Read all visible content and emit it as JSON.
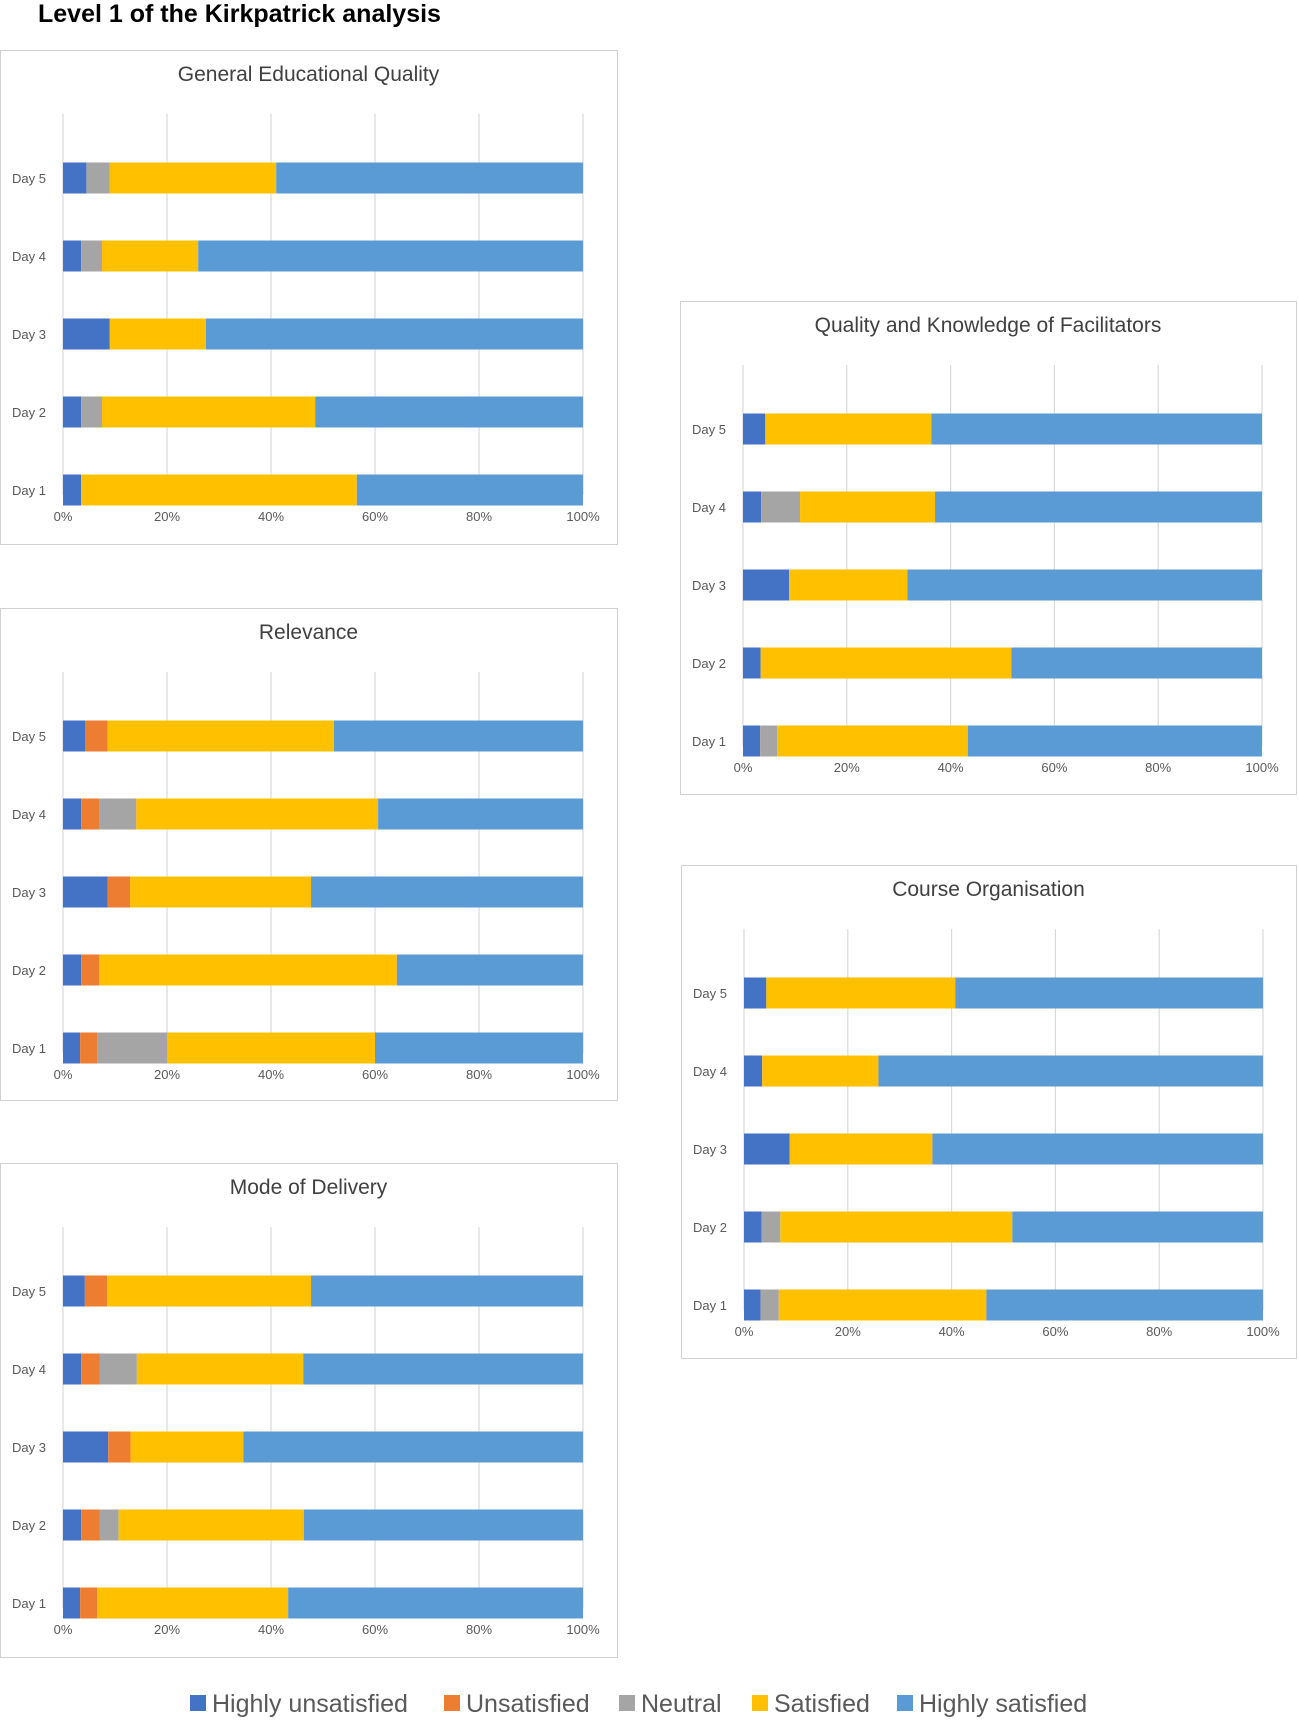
{
  "page_title": "Level 1 of the Kirkpatrick analysis",
  "colors": {
    "highly_unsatisfied": "#4472C4",
    "unsatisfied": "#ED7D31",
    "neutral": "#A5A5A5",
    "satisfied": "#FFC000",
    "highly_satisfied": "#5B9BD5",
    "grid": "#d9d9d9",
    "tick_text": "#595959",
    "title_text": "#404040"
  },
  "legend": [
    {
      "label": "Highly unsatisfied",
      "color": "#4472C4"
    },
    {
      "label": "Unsatisfied",
      "color": "#ED7D31"
    },
    {
      "label": "Neutral",
      "color": "#A5A5A5"
    },
    {
      "label": "Satisfied",
      "color": "#FFC000"
    },
    {
      "label": "Highly satisfied",
      "color": "#5B9BD5"
    }
  ],
  "chart_data": [
    {
      "id": "general-educational-quality",
      "type": "bar",
      "orientation": "horizontal-stacked-100",
      "title": "General Educational Quality",
      "categories": [
        "Day 5",
        "Day 4",
        "Day 3",
        "Day 2",
        "Day 1"
      ],
      "xticks": [
        "0%",
        "20%",
        "40%",
        "60%",
        "80%",
        "100%"
      ],
      "xlim": [
        0,
        100
      ],
      "series": [
        {
          "name": "Highly unsatisfied",
          "values": [
            4.5,
            3.5,
            9,
            3.5,
            3.5
          ]
        },
        {
          "name": "Unsatisfied",
          "values": [
            0,
            0,
            0,
            0,
            0
          ]
        },
        {
          "name": "Neutral",
          "values": [
            4.5,
            4,
            0,
            4,
            0
          ]
        },
        {
          "name": "Satisfied",
          "values": [
            32,
            18.5,
            18.5,
            41,
            53
          ]
        },
        {
          "name": "Highly satisfied",
          "values": [
            59,
            74,
            72.5,
            51.5,
            43.5
          ]
        }
      ]
    },
    {
      "id": "relevance",
      "type": "bar",
      "orientation": "horizontal-stacked-100",
      "title": "Relevance",
      "categories": [
        "Day 5",
        "Day 4",
        "Day 3",
        "Day 2",
        "Day 1"
      ],
      "xticks": [
        "0%",
        "20%",
        "40%",
        "60%",
        "80%",
        "100%"
      ],
      "xlim": [
        0,
        100
      ],
      "series": [
        {
          "name": "Highly unsatisfied",
          "values": [
            4.3,
            3.5,
            8.6,
            3.5,
            3.3
          ]
        },
        {
          "name": "Unsatisfied",
          "values": [
            4.3,
            3.5,
            4.3,
            3.5,
            3.3
          ]
        },
        {
          "name": "Neutral",
          "values": [
            0,
            7.1,
            0,
            0,
            13.4
          ]
        },
        {
          "name": "Satisfied",
          "values": [
            43.5,
            46.5,
            34.8,
            57.2,
            40
          ]
        },
        {
          "name": "Highly satisfied",
          "values": [
            47.9,
            39.4,
            52.3,
            35.8,
            40
          ]
        }
      ]
    },
    {
      "id": "mode-of-delivery",
      "type": "bar",
      "orientation": "horizontal-stacked-100",
      "title": "Mode of Delivery",
      "categories": [
        "Day 5",
        "Day 4",
        "Day 3",
        "Day 2",
        "Day 1"
      ],
      "xticks": [
        "0%",
        "20%",
        "40%",
        "60%",
        "80%",
        "100%"
      ],
      "xlim": [
        0,
        100
      ],
      "series": [
        {
          "name": "Highly unsatisfied",
          "values": [
            4.2,
            3.5,
            8.7,
            3.5,
            3.3
          ]
        },
        {
          "name": "Unsatisfied",
          "values": [
            4.3,
            3.6,
            4.3,
            3.6,
            3.3
          ]
        },
        {
          "name": "Neutral",
          "values": [
            0,
            7.1,
            0,
            3.6,
            0
          ]
        },
        {
          "name": "Satisfied",
          "values": [
            39.2,
            32,
            21.7,
            35.6,
            36.7
          ]
        },
        {
          "name": "Highly satisfied",
          "values": [
            52.3,
            53.8,
            65.3,
            53.7,
            56.7
          ]
        }
      ]
    },
    {
      "id": "quality-and-knowledge-of-facilitators",
      "type": "bar",
      "orientation": "horizontal-stacked-100",
      "title": "Quality and Knowledge of Facilitators",
      "categories": [
        "Day 5",
        "Day 4",
        "Day 3",
        "Day 2",
        "Day 1"
      ],
      "xticks": [
        "0%",
        "20%",
        "40%",
        "60%",
        "80%",
        "100%"
      ],
      "xlim": [
        0,
        100
      ],
      "series": [
        {
          "name": "Highly unsatisfied",
          "values": [
            4.3,
            3.5,
            8.9,
            3.4,
            3.3
          ]
        },
        {
          "name": "Unsatisfied",
          "values": [
            0,
            0,
            0,
            0,
            0
          ]
        },
        {
          "name": "Neutral",
          "values": [
            0,
            7.5,
            0,
            0,
            3.3
          ]
        },
        {
          "name": "Satisfied",
          "values": [
            32,
            26,
            22.8,
            48.3,
            36.7
          ]
        },
        {
          "name": "Highly satisfied",
          "values": [
            63.7,
            63,
            68.3,
            48.3,
            56.7
          ]
        }
      ]
    },
    {
      "id": "course-organisation",
      "type": "bar",
      "orientation": "horizontal-stacked-100",
      "title": "Course Organisation",
      "categories": [
        "Day 5",
        "Day 4",
        "Day 3",
        "Day 2",
        "Day 1"
      ],
      "xticks": [
        "0%",
        "20%",
        "40%",
        "60%",
        "80%",
        "100%"
      ],
      "xlim": [
        0,
        100
      ],
      "series": [
        {
          "name": "Highly unsatisfied",
          "values": [
            4.3,
            3.5,
            8.8,
            3.4,
            3.2
          ]
        },
        {
          "name": "Unsatisfied",
          "values": [
            0,
            0,
            0,
            0,
            0
          ]
        },
        {
          "name": "Neutral",
          "values": [
            0,
            0,
            0,
            3.6,
            3.5
          ]
        },
        {
          "name": "Satisfied",
          "values": [
            36.4,
            22.4,
            27.5,
            44.7,
            40
          ]
        },
        {
          "name": "Highly satisfied",
          "values": [
            59.3,
            74.1,
            63.7,
            48.3,
            53.3
          ]
        }
      ]
    }
  ]
}
